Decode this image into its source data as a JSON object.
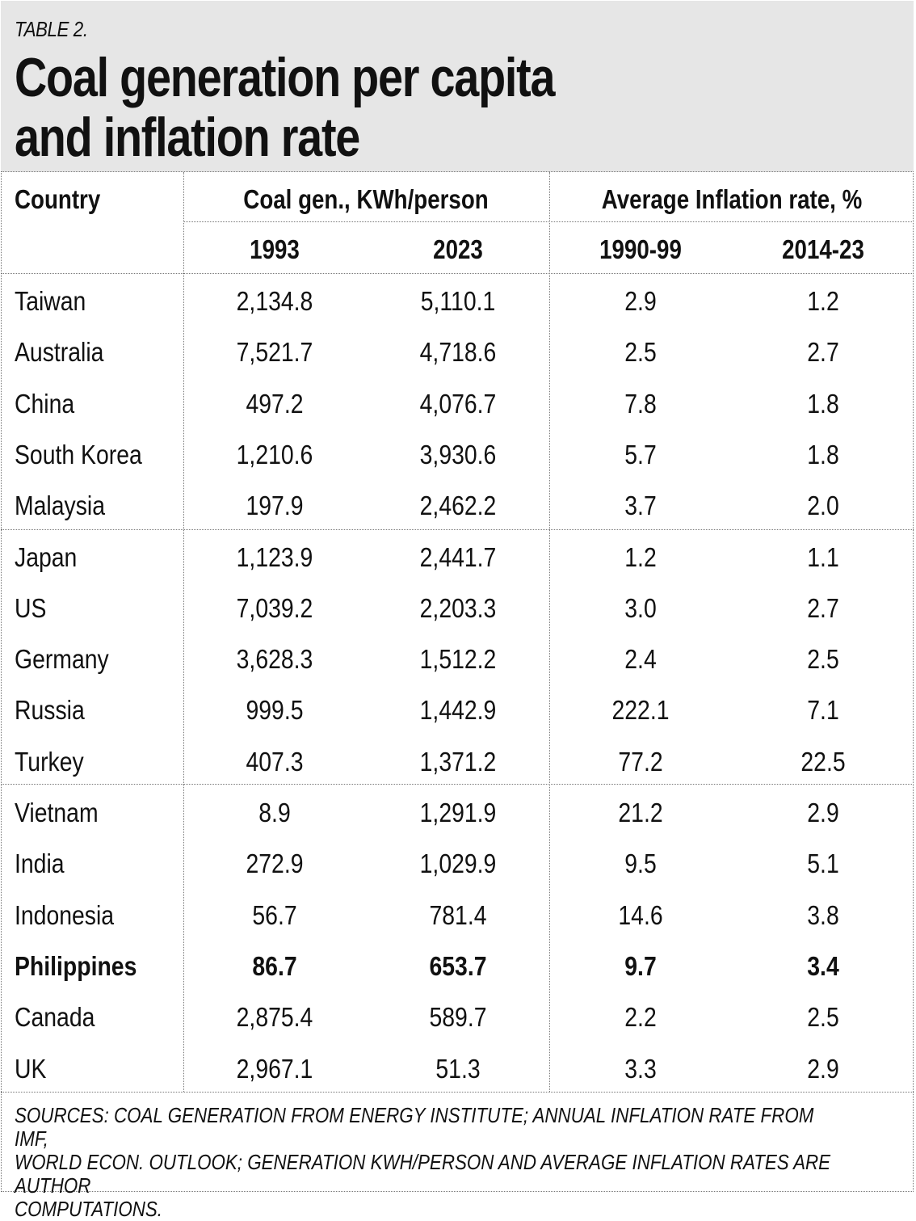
{
  "label": "TABLE 2.",
  "title_line1": "Coal generation per capita",
  "title_line2": "and inflation rate",
  "headers": {
    "country": "Country",
    "coal_group": "Coal gen., KWh/person",
    "inflation_group": "Average Inflation rate, %",
    "years": [
      "1993",
      "2023",
      "1990-99",
      "2014-23"
    ]
  },
  "rows": [
    {
      "country": "Taiwan",
      "coal_1993": "2,134.8",
      "coal_2023": "5,110.1",
      "inf_1990_99": "2.9",
      "inf_2014_23": "1.2"
    },
    {
      "country": "Australia",
      "coal_1993": "7,521.7",
      "coal_2023": "4,718.6",
      "inf_1990_99": "2.5",
      "inf_2014_23": "2.7"
    },
    {
      "country": "China",
      "coal_1993": "497.2",
      "coal_2023": "4,076.7",
      "inf_1990_99": "7.8",
      "inf_2014_23": "1.8"
    },
    {
      "country": "South Korea",
      "coal_1993": "1,210.6",
      "coal_2023": "3,930.6",
      "inf_1990_99": "5.7",
      "inf_2014_23": "1.8"
    },
    {
      "country": "Malaysia",
      "coal_1993": "197.9",
      "coal_2023": "2,462.2",
      "inf_1990_99": "3.7",
      "inf_2014_23": "2.0"
    },
    {
      "country": "Japan",
      "coal_1993": "1,123.9",
      "coal_2023": "2,441.7",
      "inf_1990_99": "1.2",
      "inf_2014_23": "1.1"
    },
    {
      "country": "US",
      "coal_1993": "7,039.2",
      "coal_2023": "2,203.3",
      "inf_1990_99": "3.0",
      "inf_2014_23": "2.7"
    },
    {
      "country": "Germany",
      "coal_1993": "3,628.3",
      "coal_2023": "1,512.2",
      "inf_1990_99": "2.4",
      "inf_2014_23": "2.5"
    },
    {
      "country": "Russia",
      "coal_1993": "999.5",
      "coal_2023": "1,442.9",
      "inf_1990_99": "222.1",
      "inf_2014_23": "7.1"
    },
    {
      "country": "Turkey",
      "coal_1993": "407.3",
      "coal_2023": "1,371.2",
      "inf_1990_99": "77.2",
      "inf_2014_23": "22.5"
    },
    {
      "country": "Vietnam",
      "coal_1993": "8.9",
      "coal_2023": "1,291.9",
      "inf_1990_99": "21.2",
      "inf_2014_23": "2.9"
    },
    {
      "country": "India",
      "coal_1993": "272.9",
      "coal_2023": "1,029.9",
      "inf_1990_99": "9.5",
      "inf_2014_23": "5.1"
    },
    {
      "country": "Indonesia",
      "coal_1993": "56.7",
      "coal_2023": "781.4",
      "inf_1990_99": "14.6",
      "inf_2014_23": "3.8"
    },
    {
      "country": "Philippines",
      "coal_1993": "86.7",
      "coal_2023": "653.7",
      "inf_1990_99": "9.7",
      "inf_2014_23": "3.4"
    },
    {
      "country": "Canada",
      "coal_1993": "2,875.4",
      "coal_2023": "589.7",
      "inf_1990_99": "2.2",
      "inf_2014_23": "2.5"
    },
    {
      "country": "UK",
      "coal_1993": "2,967.1",
      "coal_2023": "51.3",
      "inf_1990_99": "3.3",
      "inf_2014_23": "2.9"
    }
  ],
  "highlighted_row": "Philippines",
  "notes": [
    "Sources: Coal generation from Energy Institute; annual inflation rate from IMF,",
    "World Econ. Outlook; Generation KWh/person and average inflation rates are author",
    "computations."
  ]
}
